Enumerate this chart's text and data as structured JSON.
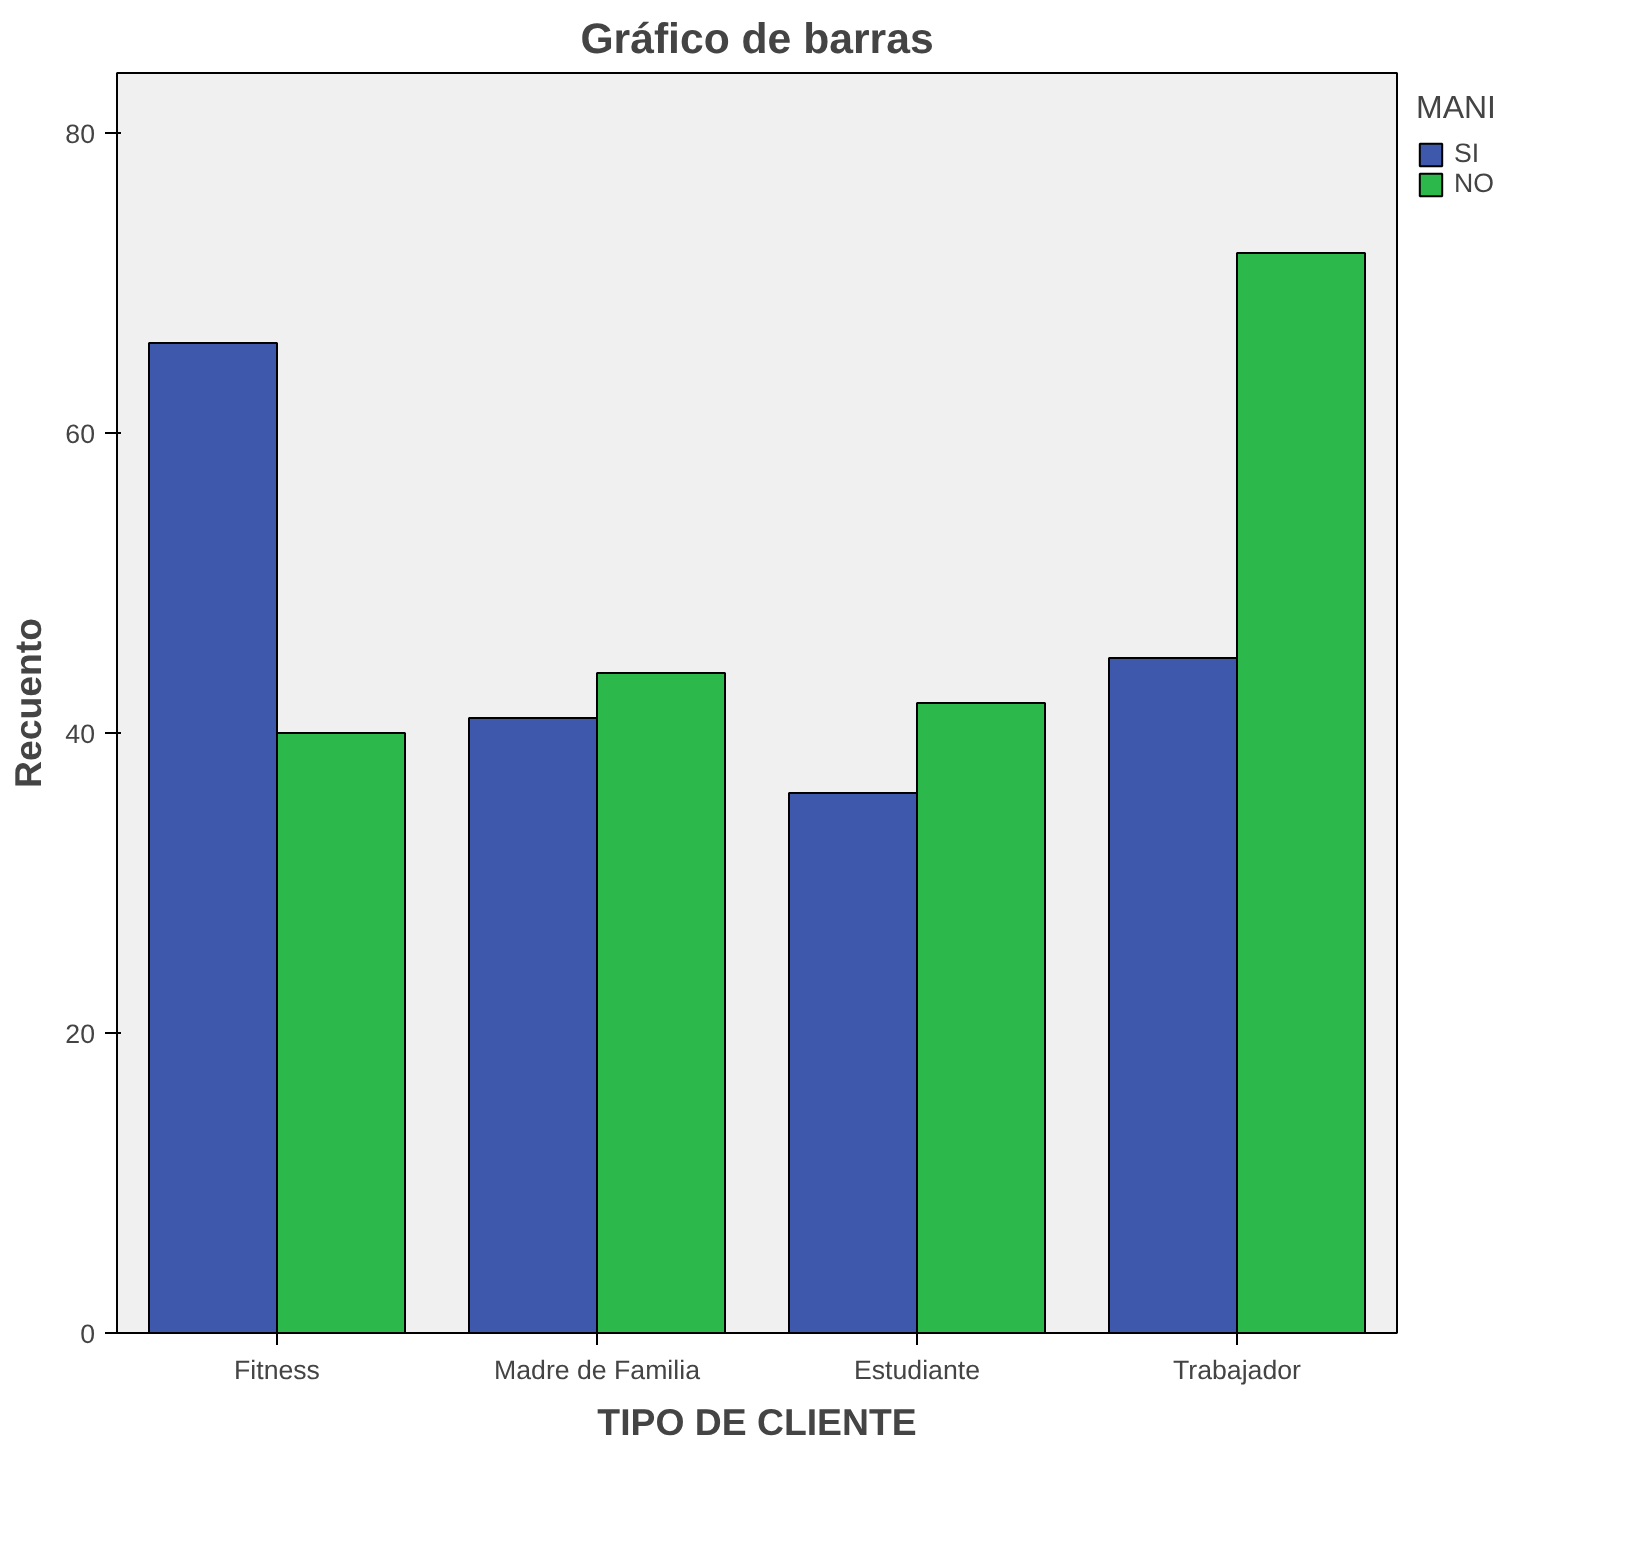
{
  "chart_data": {
    "type": "bar",
    "title": "Gráfico de barras",
    "xlabel": "TIPO DE CLIENTE",
    "ylabel": "Recuento",
    "legend_title": "MANI",
    "categories": [
      "Fitness",
      "Madre de Familia",
      "Estudiante",
      "Trabajador"
    ],
    "series": [
      {
        "name": "SI",
        "color": "#3e58ac",
        "values": [
          66,
          41,
          36,
          45
        ]
      },
      {
        "name": "NO",
        "color": "#2db84c",
        "values": [
          40,
          44,
          42,
          72
        ]
      }
    ],
    "ylim": [
      0,
      84
    ],
    "yticks": [
      0,
      20,
      40,
      60,
      80
    ],
    "grid": false,
    "legend": "top right"
  }
}
